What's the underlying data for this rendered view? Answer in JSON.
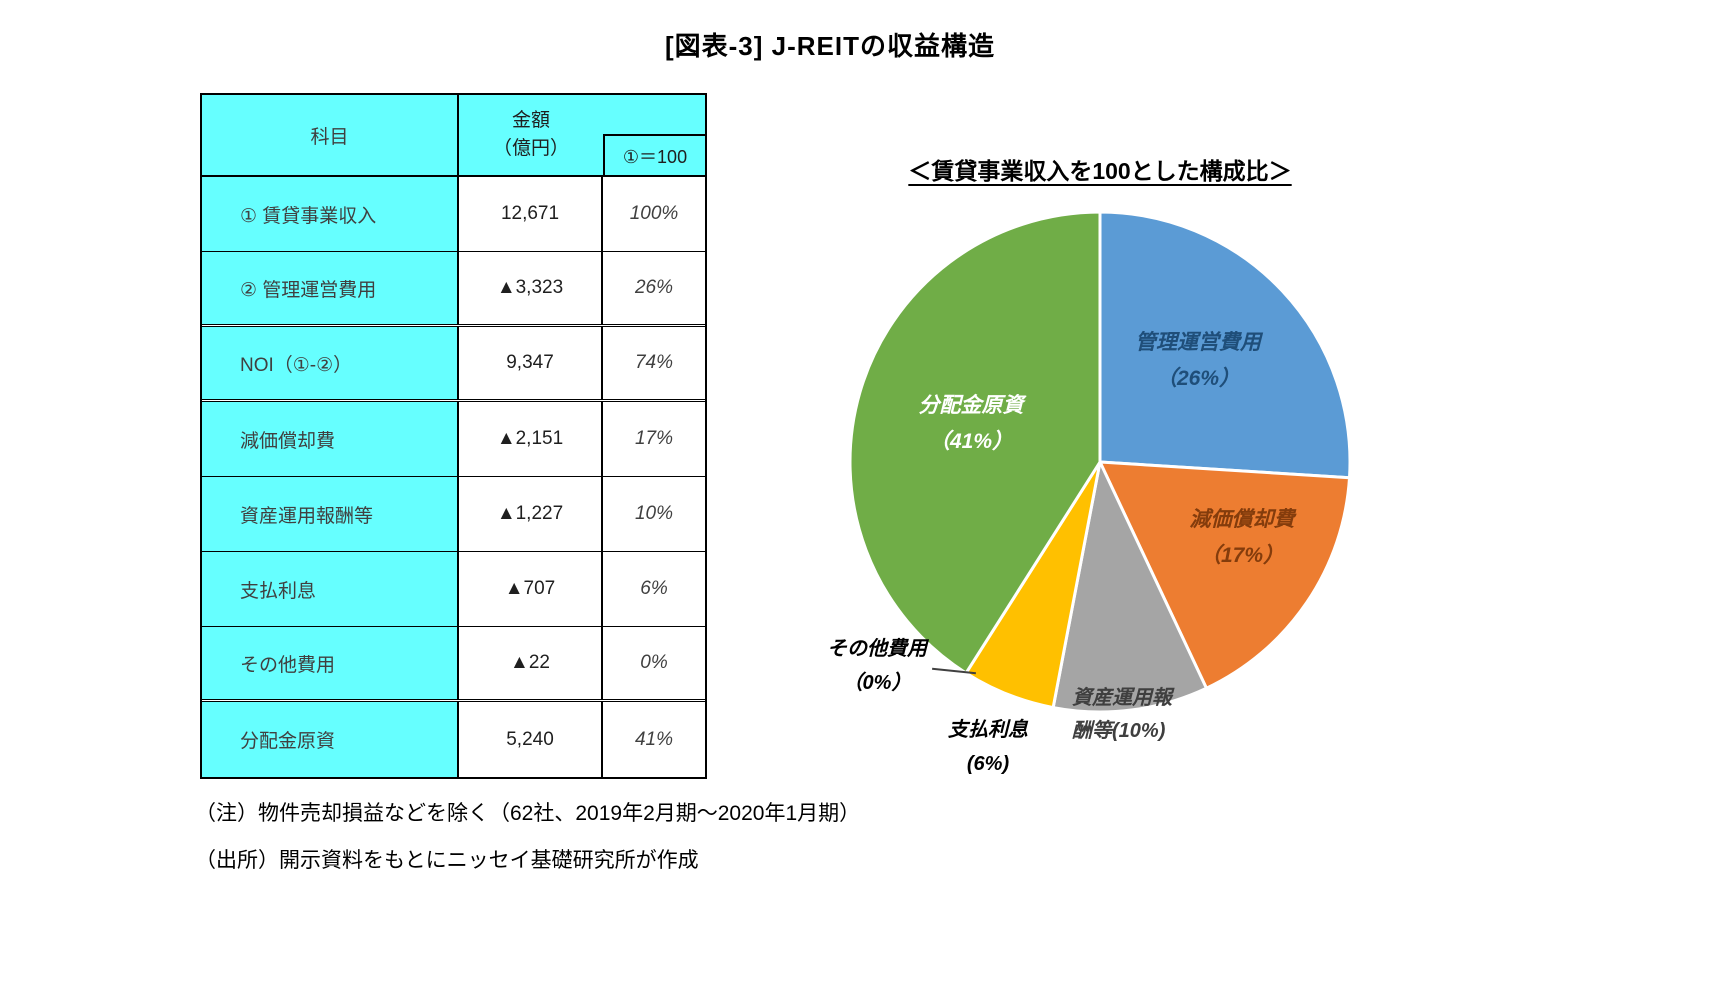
{
  "page": {
    "title": "[図表-3] J-REITの収益構造"
  },
  "table": {
    "headers": {
      "item": "科目",
      "amount_line1": "金額",
      "amount_line2": "（億円）",
      "index_label": "①＝100"
    },
    "rows": [
      {
        "label": "① 賃貸事業収入",
        "amount": "12,671",
        "ratio": "100%"
      },
      {
        "label": "② 管理運営費用",
        "amount": "▲3,323",
        "ratio": "26%"
      },
      {
        "label": "NOI（①-②）",
        "amount": "9,347",
        "ratio": "74%"
      },
      {
        "label": "減価償却費",
        "amount": "▲2,151",
        "ratio": "17%"
      },
      {
        "label": "資産運用報酬等",
        "amount": "▲1,227",
        "ratio": "10%"
      },
      {
        "label": "支払利息",
        "amount": "▲707",
        "ratio": "6%"
      },
      {
        "label": "その他費用",
        "amount": "▲22",
        "ratio": "0%"
      },
      {
        "label": "分配金原資",
        "amount": "5,240",
        "ratio": "41%"
      }
    ]
  },
  "notes": {
    "note1": "（注）物件売却損益などを除く（62社、2019年2月期～2020年1月期）",
    "note2": "（出所）開示資料をもとにニッセイ基礎研究所が作成"
  },
  "chart_data": {
    "type": "pie",
    "title": "＜賃貸事業収入を100とした構成比＞",
    "unit": "%",
    "start_angle_deg": 0,
    "direction": "clockwise",
    "slices": [
      {
        "name": "管理運営費用",
        "value": 26,
        "pct_label": "（26%）",
        "color": "#5B9BD5",
        "text_color": "#1F4E79"
      },
      {
        "name": "減価償却費",
        "value": 17,
        "pct_label": "（17%）",
        "color": "#ED7D31",
        "text_color": "#843C0C"
      },
      {
        "name": "資産運用報酬等",
        "value": 10,
        "pct_label": "(10%)",
        "color": "#A5A5A5",
        "text_color": "#3F3F3F"
      },
      {
        "name": "支払利息",
        "value": 6,
        "pct_label": "(6%)",
        "color": "#FFC000",
        "text_color": "#000000"
      },
      {
        "name": "その他費用",
        "value": 0,
        "pct_label": "（0%）",
        "color": "#FFFFFF",
        "text_color": "#000000"
      },
      {
        "name": "分配金原資",
        "value": 41,
        "pct_label": "（41%）",
        "color": "#70AD47",
        "text_color": "#FFFFFF"
      }
    ]
  }
}
